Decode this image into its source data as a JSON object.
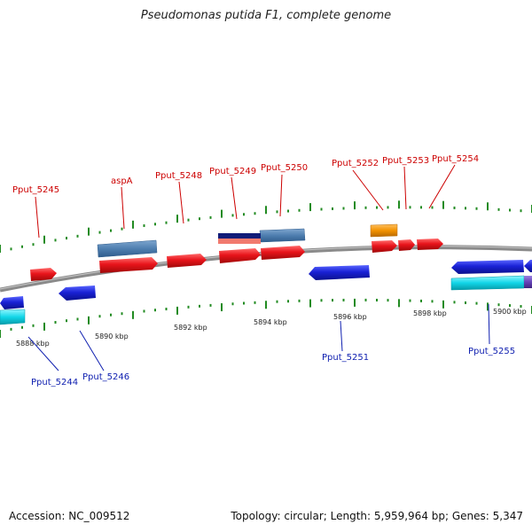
{
  "title": "Pseudomonas putida F1, complete genome",
  "footer": {
    "accession": "Accession: NC_009512",
    "topology": "Topology: circular; Length: 5,959,964 bp; Genes: 5,347"
  },
  "colors": {
    "forward_gene": "#e8141b",
    "reverse_gene": "#1a22d6",
    "cds_steelblue": "#4f7fb0",
    "cds_cyan": "#12d6e8",
    "cds_orange": "#f29200",
    "cds_navy": "#101c78",
    "cds_salmon": "#f27a6e",
    "cds_purple": "#6644b8",
    "tick": "#228b22",
    "backbone": "#7a7a7a",
    "forward_label": "#cc0000",
    "reverse_label": "#1020b0"
  },
  "scale_labels": [
    "5888 kbp",
    "5890 kbp",
    "5892 kbp",
    "5894 kbp",
    "5896 kbp",
    "5898 kbp",
    "5900 kbp"
  ],
  "forward_labels": [
    "Pput_5245",
    "aspA",
    "Pput_5248",
    "Pput_5249",
    "Pput_5250",
    "Pput_5252",
    "Pput_5253",
    "Pput_5254"
  ],
  "reverse_labels": [
    "Pput_5244",
    "Pput_5246",
    "Pput_5251",
    "Pput_5255"
  ]
}
